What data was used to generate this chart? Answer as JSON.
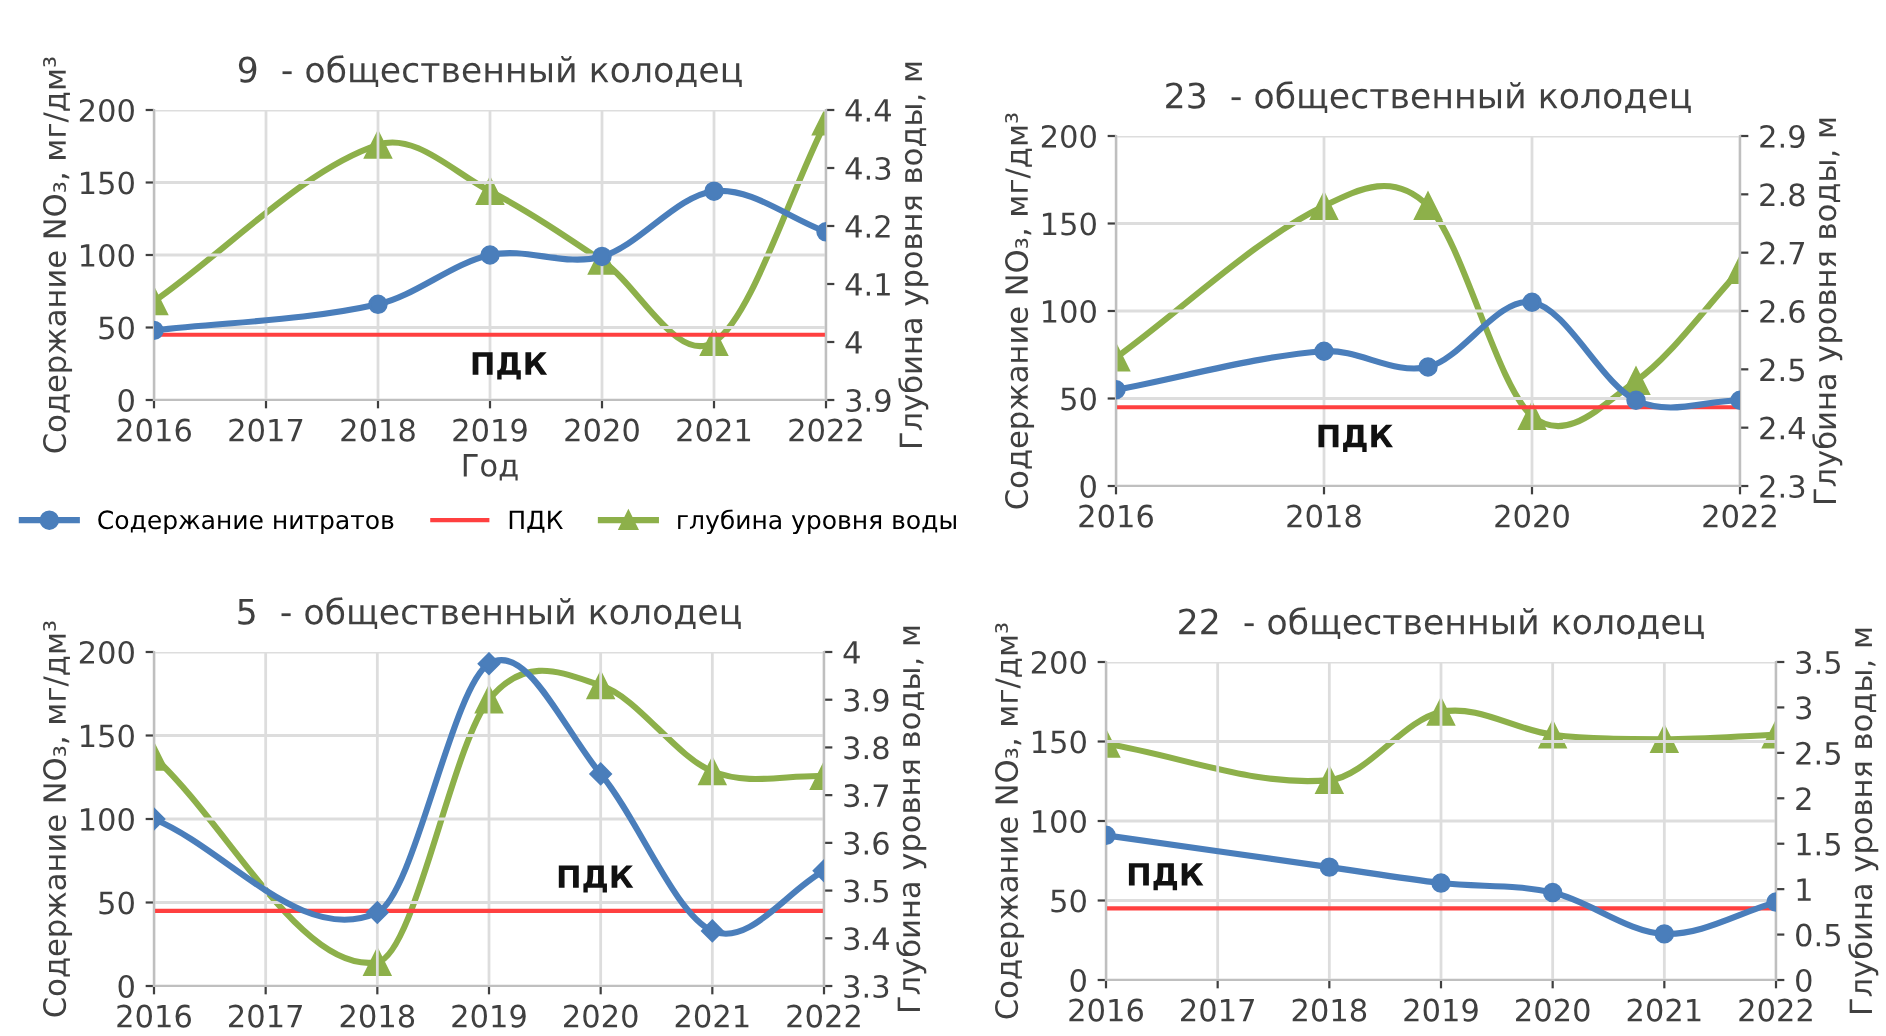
{
  "chart_data": [
    {
      "type": "line",
      "title": "9  - общественный колодец",
      "xlabel": "Год",
      "ylabel": "Содержание NO₃, мг/дм³",
      "y2label": "Глубина уровня воды, м",
      "xlim": [
        2016,
        2022
      ],
      "xticks": [
        2016,
        2017,
        2018,
        2019,
        2020,
        2021,
        2022
      ],
      "ylim": [
        0,
        200
      ],
      "yticks": [
        0,
        50,
        100,
        150,
        200
      ],
      "y2lim": [
        3.9,
        4.4
      ],
      "y2ticks": [
        3.9,
        4,
        4.1,
        4.2,
        4.3,
        4.4
      ],
      "grid": true,
      "legend": "bottom",
      "line_style": "solid",
      "series": [
        {
          "name": "Содержание нитратов",
          "color": "#4a7ebb",
          "marker": "circle",
          "x": [
            2016,
            2018,
            2019,
            2020,
            2021,
            2022
          ],
          "values": [
            48,
            66,
            100,
            99,
            144,
            116
          ]
        },
        {
          "name": "глубина уровня воды",
          "color": "#8db04a",
          "marker": "triangle",
          "axis": "y2",
          "x": [
            2016,
            2018,
            2019,
            2020,
            2021,
            2022
          ],
          "values": [
            4.07,
            4.34,
            4.26,
            4.14,
            4.0,
            4.38
          ]
        }
      ],
      "ref_lines": [
        {
          "axis": "y",
          "value": 45,
          "label": "ПДК",
          "color": "#ff4040"
        }
      ]
    },
    {
      "type": "line",
      "title": "23  - общественный колодец",
      "ylabel": "Содержание NO₃, мг/дм³",
      "y2label": "Глубина уровня воды, м",
      "xlim": [
        2016,
        2022
      ],
      "xticks": [
        2016,
        2018,
        2020,
        2022
      ],
      "ylim": [
        0,
        200
      ],
      "yticks": [
        0,
        50,
        100,
        150,
        200
      ],
      "y2lim": [
        2.3,
        2.9
      ],
      "y2ticks": [
        2.3,
        2.4,
        2.5,
        2.6,
        2.7,
        2.8,
        2.9
      ],
      "grid": true,
      "line_style": "solid",
      "series": [
        {
          "color": "#4a7ebb",
          "marker": "circle",
          "x": [
            2016,
            2018,
            2019,
            2020,
            2021,
            2022
          ],
          "values": [
            55,
            77,
            68,
            105,
            49,
            49
          ]
        },
        {
          "color": "#8db04a",
          "marker": "triangle",
          "axis": "y2",
          "x": [
            2016,
            2018,
            2019,
            2020,
            2021,
            2022
          ],
          "values": [
            2.52,
            2.78,
            2.78,
            2.42,
            2.48,
            2.67
          ]
        }
      ],
      "ref_lines": [
        {
          "axis": "y",
          "value": 45,
          "label": "ПДК",
          "color": "#ff4040"
        }
      ]
    },
    {
      "type": "line",
      "title": "5  - общественный колодец",
      "ylabel": "Содержание NO₃, мг/дм³",
      "y2label": "Глубина уровня воды, м",
      "xlim": [
        2016,
        2022
      ],
      "xticks": [
        2016,
        2017,
        2018,
        2019,
        2020,
        2021,
        2022
      ],
      "ylim": [
        0,
        200
      ],
      "yticks": [
        0,
        50,
        100,
        150,
        200
      ],
      "y2lim": [
        3.3,
        4
      ],
      "y2ticks": [
        3.3,
        3.4,
        3.5,
        3.6,
        3.7,
        3.8,
        3.9,
        4
      ],
      "grid": true,
      "line_style": "solid",
      "series": [
        {
          "color": "#4a7ebb",
          "marker": "diamond",
          "x": [
            2016,
            2018,
            2019,
            2020,
            2021,
            2022
          ],
          "values": [
            100,
            44,
            193,
            127,
            33,
            69
          ]
        },
        {
          "color": "#8db04a",
          "marker": "triangle",
          "axis": "y2",
          "x": [
            2016,
            2018,
            2019,
            2020,
            2021,
            2022
          ],
          "values": [
            3.78,
            3.35,
            3.9,
            3.93,
            3.75,
            3.74
          ]
        }
      ],
      "ref_lines": [
        {
          "axis": "y",
          "value": 45,
          "label": "ПДК",
          "color": "#ff4040"
        }
      ]
    },
    {
      "type": "line",
      "title": "22  - общественный колодец",
      "ylabel": "Содержание NO₃, мг/дм³",
      "y2label": "Глубина уровня воды, м",
      "xlim": [
        2016,
        2022
      ],
      "xticks": [
        2016,
        2017,
        2018,
        2019,
        2020,
        2021,
        2022
      ],
      "ylim": [
        0,
        200
      ],
      "yticks": [
        0,
        50,
        100,
        150,
        200
      ],
      "y2lim": [
        0,
        3.5
      ],
      "y2ticks": [
        0,
        0.5,
        1,
        1.5,
        2,
        2.5,
        3,
        3.5
      ],
      "grid": true,
      "line_style": "solid",
      "series": [
        {
          "color": "#4a7ebb",
          "marker": "circle",
          "x": [
            2016,
            2018,
            2019,
            2020,
            2021,
            2022
          ],
          "values": [
            91,
            71,
            61,
            55,
            29,
            49
          ]
        },
        {
          "color": "#8db04a",
          "marker": "triangle",
          "axis": "y2",
          "x": [
            2016,
            2018,
            2019,
            2020,
            2021,
            2022
          ],
          "values": [
            2.6,
            2.2,
            2.95,
            2.7,
            2.65,
            2.7
          ]
        }
      ],
      "ref_lines": [
        {
          "axis": "y",
          "value": 45,
          "label": "ПДК",
          "color": "#ff4040"
        }
      ]
    }
  ]
}
